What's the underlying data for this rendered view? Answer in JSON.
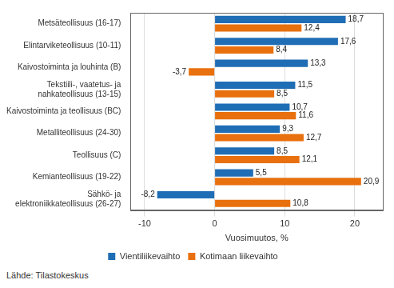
{
  "chart_data": {
    "type": "bar",
    "orientation": "horizontal",
    "categories": [
      [
        "Metsäteollisuus (16-17)"
      ],
      [
        "Elintarviketeollisuus (10-11)"
      ],
      [
        "Kaivostoiminta ja louhinta (B)"
      ],
      [
        "Tekstiili-, vaatetus- ja",
        "nahkateollisuus (13-15)"
      ],
      [
        "Kaivostoiminta ja teollisuus (BC)"
      ],
      [
        "Metalliteollisuus (24-30)"
      ],
      [
        "Teollisuus (C)"
      ],
      [
        "Kemianteollisuus (19-22)"
      ],
      [
        "Sähkö- ja",
        "elektroniikkateollisuus (26-27)"
      ]
    ],
    "series": [
      {
        "name": "Vientiliikevaihto",
        "color": "#1f6db5",
        "values": [
          18.7,
          17.6,
          13.3,
          11.5,
          10.7,
          9.3,
          8.5,
          5.5,
          -8.2
        ],
        "value_labels": [
          "18,7",
          "17,6",
          "13,3",
          "11,5",
          "10,7",
          "9,3",
          "8,5",
          "5,5",
          "-8,2"
        ]
      },
      {
        "name": "Kotimaan liikevaihto",
        "color": "#e8700e",
        "values": [
          12.4,
          8.4,
          -3.7,
          8.5,
          11.6,
          12.7,
          12.1,
          20.9,
          10.8
        ],
        "value_labels": [
          "12,4",
          "8,4",
          "-3,7",
          "8,5",
          "11,6",
          "12,7",
          "12,1",
          "20,9",
          "10,8"
        ]
      }
    ],
    "x_label": "Vuosimuutos, %",
    "xlim": [
      -12,
      24
    ],
    "xticks": [
      -10,
      0,
      10,
      20
    ],
    "grid": true,
    "legend": "bottom",
    "data_labels": true,
    "annotations": [
      "Lähde: Tilastokeskus"
    ]
  }
}
